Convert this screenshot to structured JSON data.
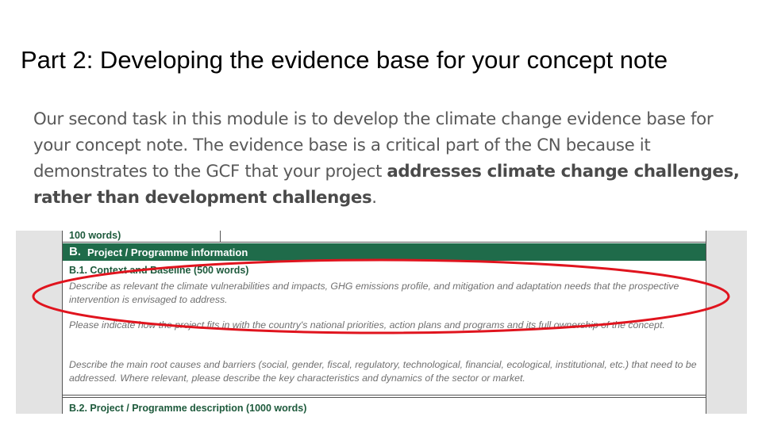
{
  "slide": {
    "title": "Part 2: Developing the evidence base for your concept note",
    "body_part1": "Our second task in this module is to develop the climate change evidence base for your concept note.  The evidence base is a critical part of the CN because it demonstrates to the GCF that your project ",
    "body_bold": "addresses climate change challenges, rather than development challenges",
    "body_part2": "."
  },
  "form_excerpt": {
    "top_row_text": "100 words)",
    "section_letter": "B.",
    "section_label": "Project / Programme information",
    "subsection_b1": "B.1. Context and Baseline (500 words)",
    "paragraph_1": "Describe as relevant the climate vulnerabilities and impacts, GHG emissions profile, and mitigation and adaptation needs that the prospective intervention is envisaged to address.",
    "paragraph_2": "Please indicate how the project fits in with the country's national priorities, action plans and programs and its full ownership of the concept.",
    "paragraph_3": "Describe the main root causes and barriers (social, gender, fiscal, regulatory, technological, financial, ecological, institutional, etc.) that need to be addressed. Where relevant, please describe the key characteristics and dynamics of the sector or market.",
    "subsection_b2": "B.2. Project / Programme description (1000 words)"
  },
  "colors": {
    "section_bar": "#1f6b4a",
    "heading_green": "#1e5a3c",
    "annotation_red": "#e0141e",
    "body_gray": "#595959"
  }
}
